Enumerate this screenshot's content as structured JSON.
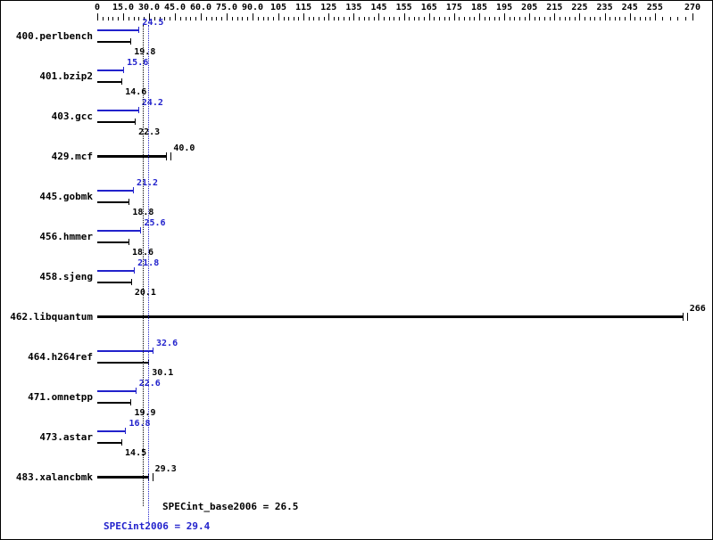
{
  "chart_data": {
    "type": "bar",
    "orientation": "horizontal",
    "grid": false,
    "axis": {
      "position": "top",
      "range": [
        0,
        270
      ],
      "ticks": [
        {
          "v": 0,
          "label": "0"
        },
        {
          "v": 15,
          "label": "15.0"
        },
        {
          "v": 30,
          "label": "30.0"
        },
        {
          "v": 45,
          "label": "45.0"
        },
        {
          "v": 60,
          "label": "60.0"
        },
        {
          "v": 75,
          "label": "75.0"
        },
        {
          "v": 90,
          "label": "90.0"
        },
        {
          "v": 105,
          "label": "105"
        },
        {
          "v": 115,
          "label": "115"
        },
        {
          "v": 125,
          "label": "125"
        },
        {
          "v": 135,
          "label": "135"
        },
        {
          "v": 145,
          "label": "145"
        },
        {
          "v": 155,
          "label": "155"
        },
        {
          "v": 165,
          "label": "165"
        },
        {
          "v": 175,
          "label": "175"
        },
        {
          "v": 185,
          "label": "185"
        },
        {
          "v": 195,
          "label": "195"
        },
        {
          "v": 205,
          "label": "205"
        },
        {
          "v": 215,
          "label": "215"
        },
        {
          "v": 225,
          "label": "225"
        },
        {
          "v": 235,
          "label": "235"
        },
        {
          "v": 245,
          "label": "245"
        },
        {
          "v": 255,
          "label": "255"
        },
        {
          "v": 270,
          "label": "270"
        }
      ]
    },
    "series": [
      {
        "name": "SPECint2006 (peak)",
        "color": "#2222cc"
      },
      {
        "name": "SPECint_base2006 (base)",
        "color": "#000000"
      }
    ],
    "benchmarks": [
      {
        "name": "400.perlbench",
        "style": "double",
        "peak": 24.5,
        "base": 19.8,
        "peak_label": "24.5",
        "base_label": "19.8"
      },
      {
        "name": "401.bzip2",
        "style": "double",
        "peak": 15.6,
        "base": 14.6,
        "peak_label": "15.6",
        "base_label": "14.6"
      },
      {
        "name": "403.gcc",
        "style": "double",
        "peak": 24.2,
        "base": 22.3,
        "peak_label": "24.2",
        "base_label": "22.3"
      },
      {
        "name": "429.mcf",
        "style": "single",
        "value": 40.0,
        "label": "40.0"
      },
      {
        "name": "445.gobmk",
        "style": "double",
        "peak": 21.2,
        "base": 18.8,
        "peak_label": "21.2",
        "base_label": "18.8"
      },
      {
        "name": "456.hmmer",
        "style": "double",
        "peak": 25.6,
        "base": 18.6,
        "peak_label": "25.6",
        "base_label": "18.6"
      },
      {
        "name": "458.sjeng",
        "style": "double",
        "peak": 21.8,
        "base": 20.1,
        "peak_label": "21.8",
        "base_label": "20.1"
      },
      {
        "name": "462.libquantum",
        "style": "single",
        "value": 266,
        "label": "266"
      },
      {
        "name": "464.h264ref",
        "style": "double",
        "peak": 32.6,
        "base": 30.1,
        "peak_label": "32.6",
        "base_label": "30.1"
      },
      {
        "name": "471.omnetpp",
        "style": "double",
        "peak": 22.6,
        "base": 19.9,
        "peak_label": "22.6",
        "base_label": "19.9"
      },
      {
        "name": "473.astar",
        "style": "double",
        "peak": 16.8,
        "base": 14.5,
        "peak_label": "16.8",
        "base_label": "14.5"
      },
      {
        "name": "483.xalancbmk",
        "style": "single",
        "value": 29.3,
        "label": "29.3"
      }
    ],
    "mean_lines": [
      {
        "metric": "SPECint_base2006",
        "value": 26.5,
        "color": "#000000",
        "style": "dotted"
      },
      {
        "metric": "SPECint2006",
        "value": 29.4,
        "color": "#2222cc",
        "style": "dotted"
      }
    ],
    "summary": {
      "base_text": "SPECint_base2006 = 26.5",
      "peak_text": "SPECint2006 = 29.4",
      "base_value": 26.5,
      "peak_value": 29.4
    }
  }
}
